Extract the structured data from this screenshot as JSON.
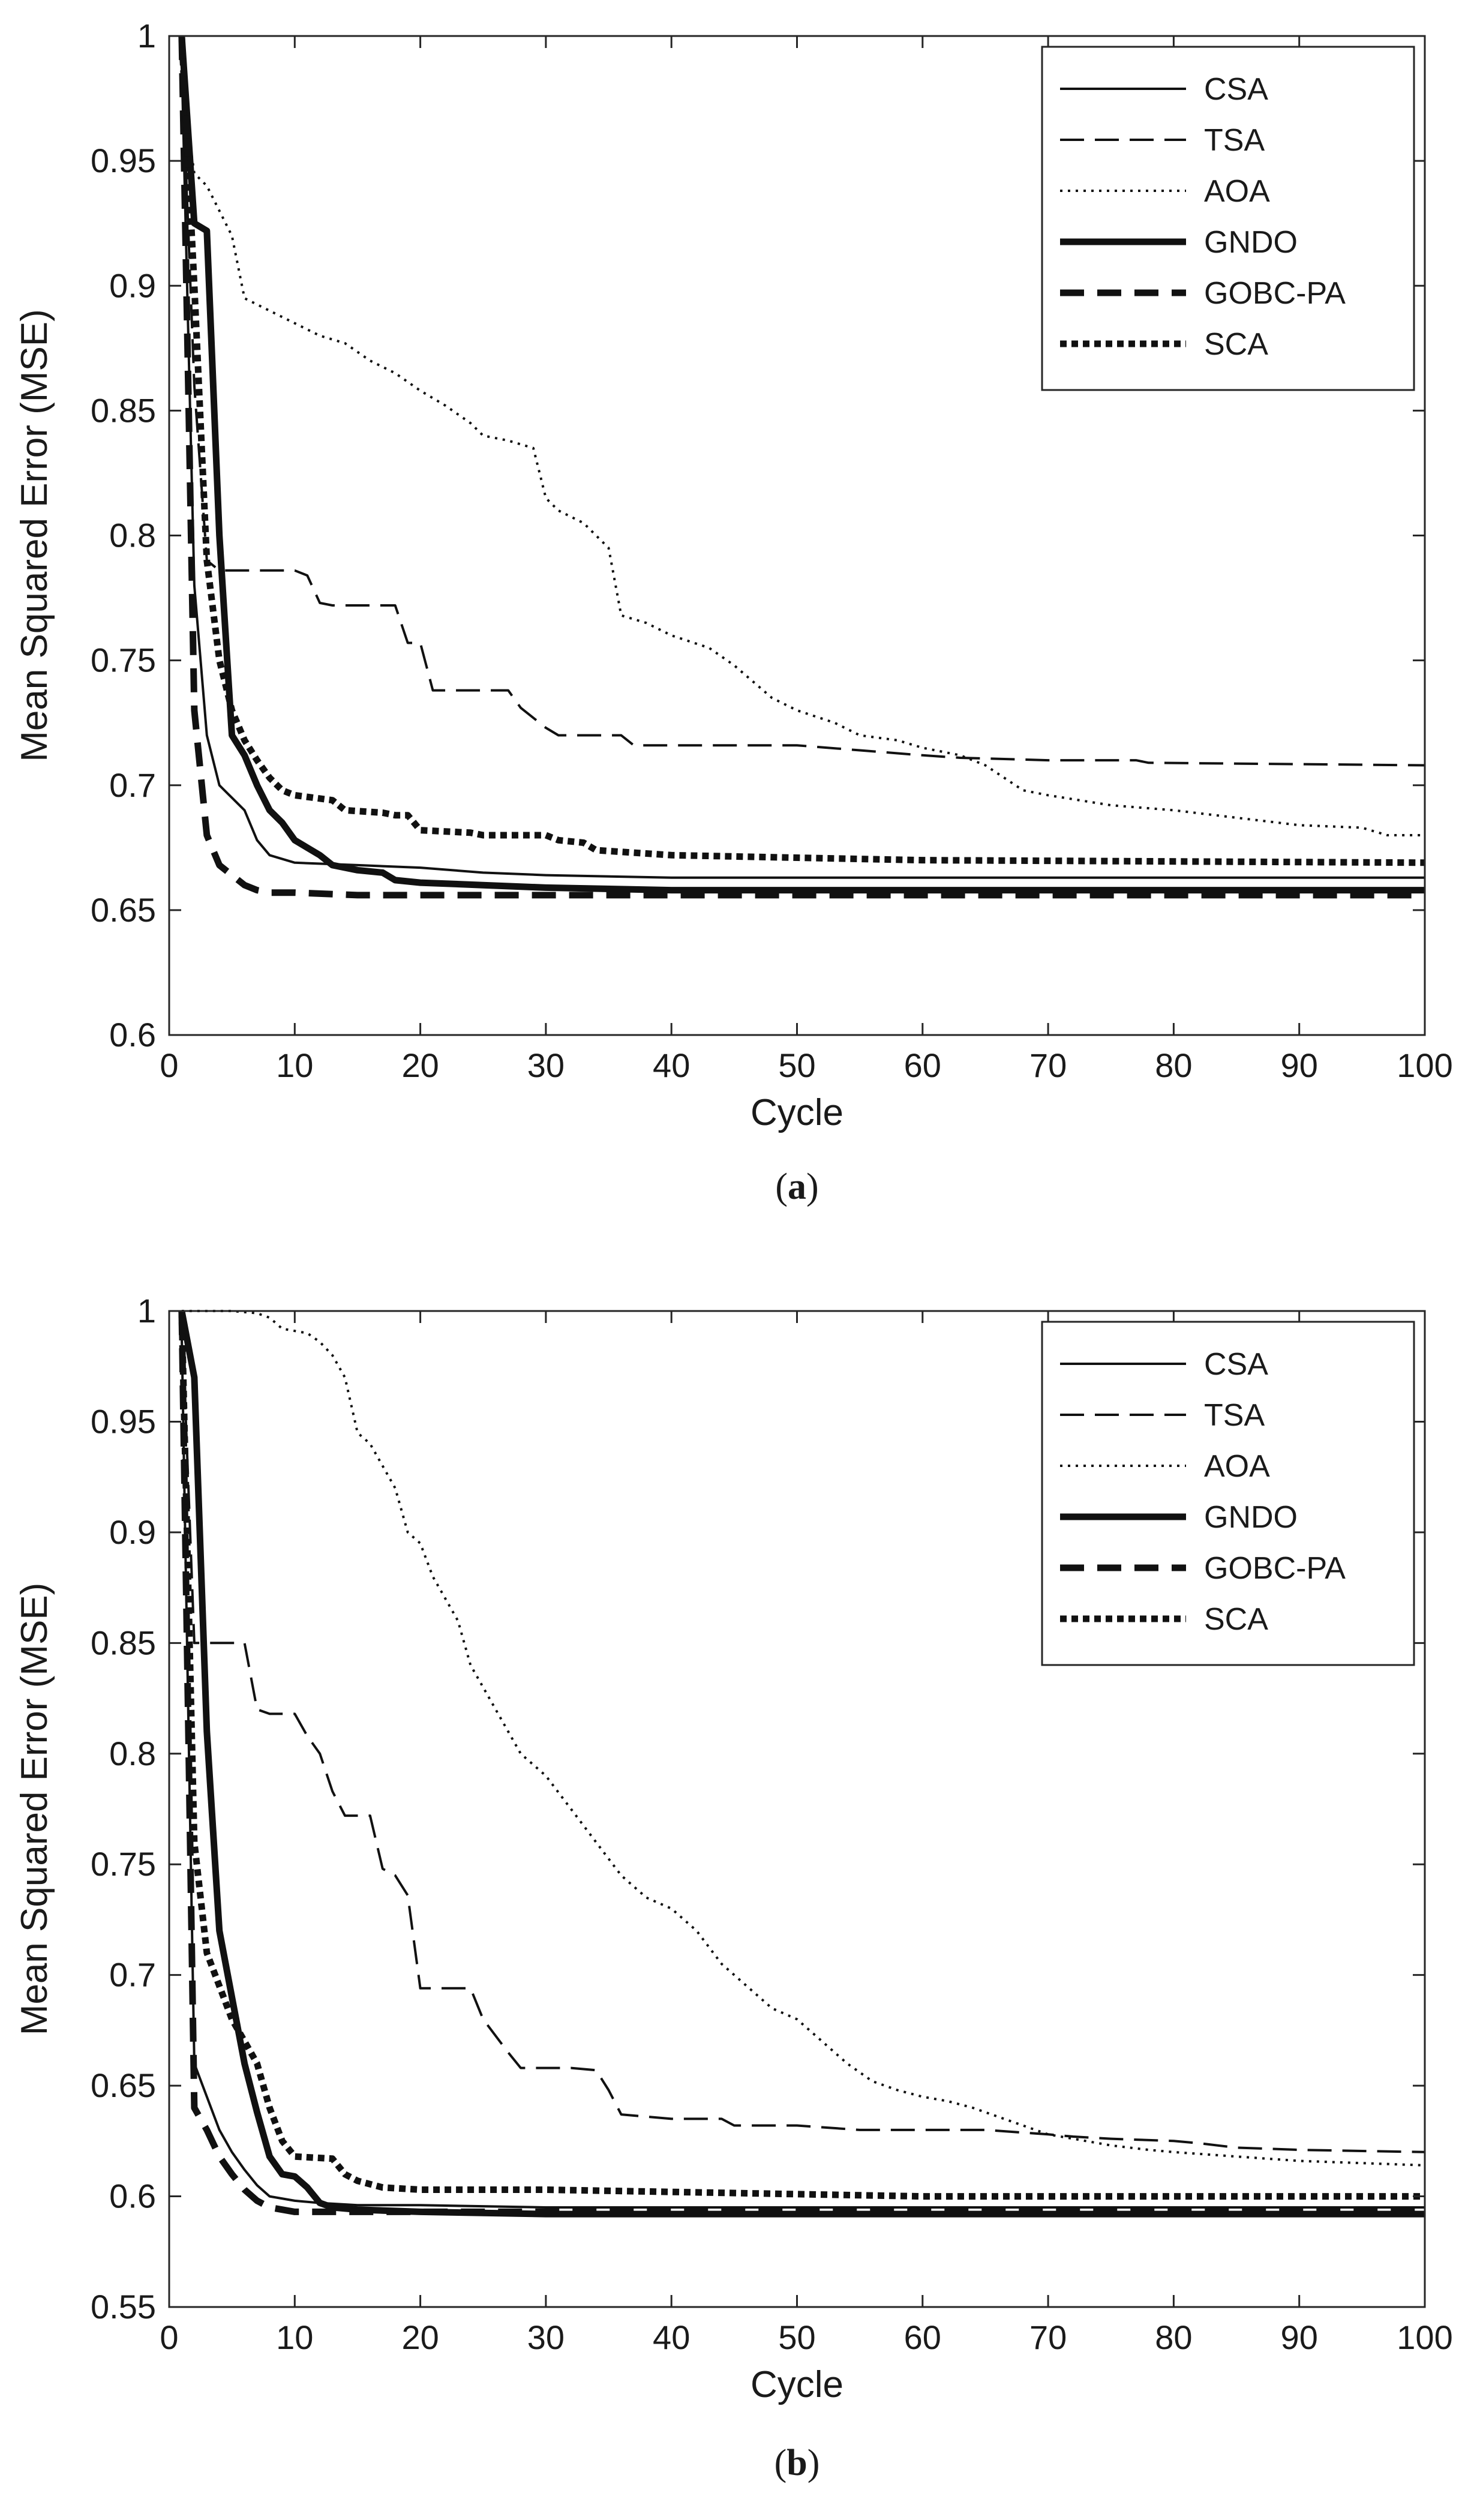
{
  "chart_data": [
    {
      "panel": "a",
      "caption": {
        "open": "(",
        "letter": "a",
        "close": ")"
      },
      "type": "line",
      "title": "",
      "xlabel": "Cycle",
      "ylabel": "Mean Squared Error (MSE)",
      "xlim": [
        0,
        100
      ],
      "ylim": [
        0.6,
        1.0
      ],
      "xticks": [
        0,
        10,
        20,
        30,
        40,
        50,
        60,
        70,
        80,
        90,
        100
      ],
      "xtick_labels": [
        "0",
        "10",
        "20",
        "30",
        "40",
        "50",
        "60",
        "70",
        "80",
        "90",
        "100"
      ],
      "yticks": [
        0.6,
        0.65,
        0.7,
        0.75,
        0.8,
        0.85,
        0.9,
        0.95,
        1.0
      ],
      "ytick_labels": [
        "0.6",
        "0.65",
        "0.7",
        "0.75",
        "0.8",
        "0.85",
        "0.9",
        "0.95",
        "1"
      ],
      "grid": false,
      "legend_position": "top-right",
      "series": [
        {
          "name": "CSA",
          "style": "solid-thin",
          "x": [
            1,
            2,
            3,
            4,
            5,
            6,
            7,
            8,
            10,
            15,
            20,
            25,
            30,
            40,
            60,
            100
          ],
          "y": [
            0.99,
            0.78,
            0.72,
            0.7,
            0.695,
            0.69,
            0.678,
            0.672,
            0.669,
            0.668,
            0.667,
            0.665,
            0.664,
            0.663,
            0.663,
            0.663
          ]
        },
        {
          "name": "TSA",
          "style": "dashed-thin",
          "x": [
            1,
            2,
            3,
            4,
            10,
            11,
            12,
            13,
            18,
            19,
            20,
            21,
            22,
            27,
            28,
            30,
            31,
            36,
            37,
            50,
            55,
            60,
            63,
            70,
            77,
            78,
            100
          ],
          "y": [
            0.99,
            0.86,
            0.79,
            0.786,
            0.786,
            0.784,
            0.773,
            0.772,
            0.772,
            0.757,
            0.757,
            0.738,
            0.738,
            0.738,
            0.731,
            0.723,
            0.72,
            0.72,
            0.716,
            0.716,
            0.714,
            0.712,
            0.711,
            0.71,
            0.71,
            0.709,
            0.708
          ]
        },
        {
          "name": "AOA",
          "style": "dotted-thin",
          "x": [
            1,
            2,
            3,
            4,
            5,
            6,
            8,
            10,
            12,
            14,
            16,
            18,
            20,
            22,
            24,
            25,
            27,
            29,
            30,
            31,
            33,
            34,
            35,
            36,
            38,
            40,
            43,
            45,
            48,
            50,
            53,
            55,
            58,
            60,
            63,
            65,
            68,
            70,
            75,
            80,
            85,
            90,
            95,
            97,
            100
          ],
          "y": [
            0.98,
            0.945,
            0.94,
            0.93,
            0.92,
            0.895,
            0.89,
            0.885,
            0.88,
            0.877,
            0.87,
            0.865,
            0.858,
            0.852,
            0.845,
            0.84,
            0.838,
            0.835,
            0.815,
            0.81,
            0.805,
            0.8,
            0.795,
            0.768,
            0.765,
            0.76,
            0.755,
            0.748,
            0.735,
            0.73,
            0.725,
            0.72,
            0.718,
            0.715,
            0.712,
            0.708,
            0.698,
            0.696,
            0.692,
            0.69,
            0.687,
            0.684,
            0.683,
            0.68,
            0.68
          ]
        },
        {
          "name": "GNDO",
          "style": "solid-thick",
          "x": [
            1,
            2,
            3,
            4,
            5,
            6,
            7,
            8,
            9,
            10,
            11,
            12,
            13,
            15,
            17,
            18,
            20,
            25,
            30,
            40,
            60,
            100
          ],
          "y": [
            1.0,
            0.925,
            0.922,
            0.8,
            0.72,
            0.712,
            0.7,
            0.69,
            0.685,
            0.678,
            0.675,
            0.672,
            0.668,
            0.666,
            0.665,
            0.662,
            0.661,
            0.66,
            0.659,
            0.658,
            0.658,
            0.658
          ]
        },
        {
          "name": "GOBC-PA",
          "style": "dashed-thick",
          "x": [
            1,
            2,
            3,
            4,
            5,
            6,
            7,
            8,
            10,
            15,
            20,
            30,
            100
          ],
          "y": [
            1.0,
            0.73,
            0.68,
            0.668,
            0.664,
            0.66,
            0.658,
            0.657,
            0.657,
            0.656,
            0.656,
            0.656,
            0.656
          ]
        },
        {
          "name": "SCA",
          "style": "dotted-thick",
          "x": [
            1,
            2,
            3,
            4,
            5,
            6,
            7,
            8,
            9,
            10,
            13,
            14,
            17,
            18,
            19,
            20,
            24,
            25,
            30,
            31,
            33,
            34,
            40,
            50,
            60,
            100
          ],
          "y": [
            1.0,
            0.9,
            0.79,
            0.75,
            0.73,
            0.718,
            0.71,
            0.703,
            0.698,
            0.696,
            0.694,
            0.69,
            0.689,
            0.688,
            0.688,
            0.682,
            0.681,
            0.68,
            0.68,
            0.678,
            0.677,
            0.674,
            0.672,
            0.671,
            0.67,
            0.669
          ]
        }
      ]
    },
    {
      "panel": "b",
      "caption": {
        "open": "(",
        "letter": "b",
        "close": ")"
      },
      "type": "line",
      "title": "",
      "xlabel": "Cycle",
      "ylabel": "Mean Squared Error (MSE)",
      "xlim": [
        0,
        100
      ],
      "ylim": [
        0.55,
        1.0
      ],
      "xticks": [
        0,
        10,
        20,
        30,
        40,
        50,
        60,
        70,
        80,
        90,
        100
      ],
      "xtick_labels": [
        "0",
        "10",
        "20",
        "30",
        "40",
        "50",
        "60",
        "70",
        "80",
        "90",
        "100"
      ],
      "yticks": [
        0.55,
        0.6,
        0.65,
        0.7,
        0.75,
        0.8,
        0.85,
        0.9,
        0.95,
        1.0
      ],
      "ytick_labels": [
        "0.55",
        "0.6",
        "0.65",
        "0.7",
        "0.75",
        "0.8",
        "0.85",
        "0.9",
        "0.95",
        "1"
      ],
      "grid": false,
      "legend_position": "top-right",
      "series": [
        {
          "name": "CSA",
          "style": "solid-thin",
          "x": [
            1,
            2,
            3,
            4,
            5,
            6,
            7,
            8,
            10,
            12,
            15,
            20,
            30,
            50,
            100
          ],
          "y": [
            0.99,
            0.66,
            0.645,
            0.63,
            0.62,
            0.612,
            0.605,
            0.6,
            0.598,
            0.597,
            0.596,
            0.596,
            0.595,
            0.595,
            0.595
          ]
        },
        {
          "name": "TSA",
          "style": "dashed-thin",
          "x": [
            1,
            2,
            3,
            6,
            7,
            8,
            10,
            11,
            12,
            13,
            14,
            16,
            17,
            18,
            19,
            20,
            24,
            25,
            27,
            28,
            32,
            34,
            35,
            36,
            40,
            44,
            45,
            50,
            55,
            60,
            65,
            70,
            72,
            75,
            80,
            82,
            85,
            90,
            100
          ],
          "y": [
            1.0,
            0.85,
            0.85,
            0.85,
            0.82,
            0.818,
            0.818,
            0.808,
            0.8,
            0.783,
            0.772,
            0.772,
            0.748,
            0.745,
            0.736,
            0.694,
            0.694,
            0.68,
            0.665,
            0.658,
            0.658,
            0.657,
            0.648,
            0.637,
            0.635,
            0.635,
            0.632,
            0.632,
            0.63,
            0.63,
            0.63,
            0.628,
            0.627,
            0.626,
            0.625,
            0.624,
            0.622,
            0.621,
            0.62
          ]
        },
        {
          "name": "AOA",
          "style": "dotted-thin",
          "x": [
            1,
            3,
            5,
            7,
            8,
            9,
            11,
            12,
            13,
            14,
            15,
            16,
            17,
            18,
            19,
            20,
            21,
            22,
            23,
            24,
            25,
            26,
            28,
            30,
            32,
            34,
            36,
            38,
            40,
            42,
            44,
            46,
            48,
            50,
            52,
            54,
            56,
            58,
            60,
            62,
            64,
            66,
            68,
            70,
            72,
            75,
            78,
            80,
            85,
            90,
            95,
            100
          ],
          "y": [
            1.0,
            1.0,
            1.0,
            0.999,
            0.997,
            0.992,
            0.99,
            0.986,
            0.98,
            0.97,
            0.945,
            0.94,
            0.93,
            0.92,
            0.9,
            0.895,
            0.88,
            0.87,
            0.86,
            0.84,
            0.83,
            0.82,
            0.8,
            0.79,
            0.775,
            0.76,
            0.745,
            0.735,
            0.73,
            0.72,
            0.705,
            0.695,
            0.685,
            0.68,
            0.67,
            0.66,
            0.652,
            0.648,
            0.645,
            0.643,
            0.64,
            0.636,
            0.632,
            0.628,
            0.626,
            0.623,
            0.621,
            0.62,
            0.618,
            0.616,
            0.615,
            0.614
          ]
        },
        {
          "name": "GNDO",
          "style": "solid-thick",
          "x": [
            1,
            2,
            3,
            4,
            5,
            6,
            7,
            8,
            9,
            10,
            11,
            12,
            13,
            15,
            20,
            30,
            50,
            100
          ],
          "y": [
            1.0,
            0.97,
            0.81,
            0.72,
            0.69,
            0.66,
            0.638,
            0.618,
            0.61,
            0.609,
            0.604,
            0.597,
            0.595,
            0.594,
            0.593,
            0.592,
            0.592,
            0.592
          ]
        },
        {
          "name": "GOBC-PA",
          "style": "dashed-thick",
          "x": [
            1,
            2,
            3,
            4,
            5,
            6,
            7,
            8,
            10,
            15,
            20,
            100
          ],
          "y": [
            1.0,
            0.64,
            0.63,
            0.618,
            0.61,
            0.603,
            0.598,
            0.595,
            0.593,
            0.593,
            0.593,
            0.593
          ]
        },
        {
          "name": "SCA",
          "style": "dotted-thick",
          "x": [
            1,
            2,
            3,
            4,
            5,
            6,
            7,
            8,
            9,
            10,
            13,
            14,
            15,
            17,
            20,
            30,
            40,
            50,
            60,
            100
          ],
          "y": [
            1.0,
            0.76,
            0.71,
            0.695,
            0.68,
            0.67,
            0.66,
            0.64,
            0.625,
            0.618,
            0.617,
            0.61,
            0.607,
            0.604,
            0.603,
            0.603,
            0.602,
            0.601,
            0.6,
            0.6
          ]
        }
      ]
    }
  ]
}
